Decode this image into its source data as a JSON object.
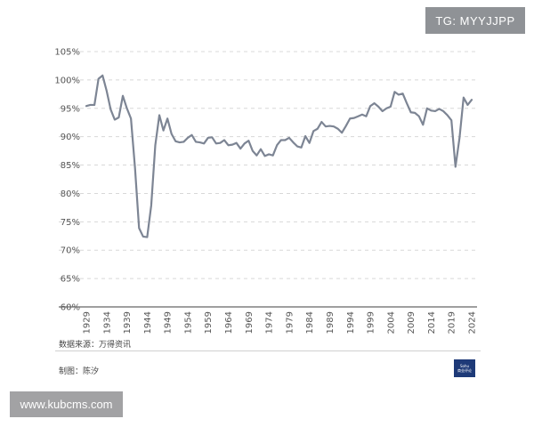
{
  "badge": {
    "text": "TG: MYYJJPP"
  },
  "watermark": {
    "text": "www.kubcms.com"
  },
  "footer": {
    "source": "数据来源：万得资讯",
    "author": "制图：陈汐",
    "logo_text_top": "Sohu",
    "logo_text_bottom": "商业评论"
  },
  "chart_data": {
    "type": "line",
    "title": "",
    "xlabel": "",
    "ylabel": "",
    "ylim": [
      60,
      105
    ],
    "xlim": [
      1929,
      2024
    ],
    "y_ticks": [
      "60%",
      "65%",
      "70%",
      "75%",
      "80%",
      "85%",
      "90%",
      "95%",
      "100%",
      "105%"
    ],
    "x_ticks": [
      "1929",
      "1934",
      "1939",
      "1944",
      "1949",
      "1954",
      "1959",
      "1964",
      "1969",
      "1974",
      "1979",
      "1984",
      "1989",
      "1994",
      "1999",
      "2004",
      "2009",
      "2014",
      "2019",
      "2024"
    ],
    "grid": true,
    "colors": {
      "line": "#7d8594"
    },
    "series": [
      {
        "x": [
          1929,
          1930,
          1931,
          1932,
          1933,
          1934,
          1935,
          1936,
          1937,
          1938,
          1939,
          1940,
          1941,
          1942,
          1943,
          1944,
          1945,
          1946,
          1947,
          1948,
          1949,
          1950,
          1951,
          1952,
          1953,
          1954,
          1955,
          1956,
          1957,
          1958,
          1959,
          1960,
          1961,
          1962,
          1963,
          1964,
          1965,
          1966,
          1967,
          1968,
          1969,
          1970,
          1971,
          1972,
          1973,
          1974,
          1975,
          1976,
          1977,
          1978,
          1979,
          1980,
          1981,
          1982,
          1983,
          1984,
          1985,
          1986,
          1987,
          1988,
          1989,
          1990,
          1991,
          1992,
          1993,
          1994,
          1995,
          1996,
          1997,
          1998,
          1999,
          2000,
          2001,
          2002,
          2003,
          2004,
          2005,
          2006,
          2007,
          2008,
          2009,
          2010,
          2011,
          2012,
          2013,
          2014,
          2015,
          2016,
          2017,
          2018,
          2019,
          2020,
          2021,
          2022,
          2023,
          2024
        ],
        "y": [
          95.4,
          95.6,
          95.6,
          100.2,
          100.8,
          98.1,
          94.8,
          93.0,
          93.4,
          97.2,
          95.0,
          93.2,
          84.5,
          73.9,
          72.4,
          72.3,
          77.9,
          88.5,
          93.8,
          91.1,
          93.2,
          90.5,
          89.2,
          89.0,
          89.1,
          89.8,
          90.3,
          89.1,
          89.0,
          88.8,
          89.8,
          89.9,
          88.8,
          88.9,
          89.4,
          88.5,
          88.6,
          88.9,
          87.9,
          88.8,
          89.3,
          87.5,
          86.7,
          87.8,
          86.6,
          86.9,
          86.7,
          88.5,
          89.4,
          89.4,
          89.8,
          89.0,
          88.3,
          88.1,
          90.1,
          88.9,
          91.0,
          91.4,
          92.6,
          91.8,
          91.9,
          91.8,
          91.4,
          90.7,
          91.9,
          93.2,
          93.3,
          93.6,
          93.9,
          93.6,
          95.4,
          95.9,
          95.3,
          94.5,
          95.0,
          95.3,
          97.9,
          97.4,
          97.6,
          95.9,
          94.3,
          94.2,
          93.6,
          92.1,
          95.0,
          94.6,
          94.5,
          94.9,
          94.5,
          93.8,
          92.9,
          84.7,
          89.8,
          96.9,
          95.6,
          96.5
        ]
      }
    ]
  }
}
